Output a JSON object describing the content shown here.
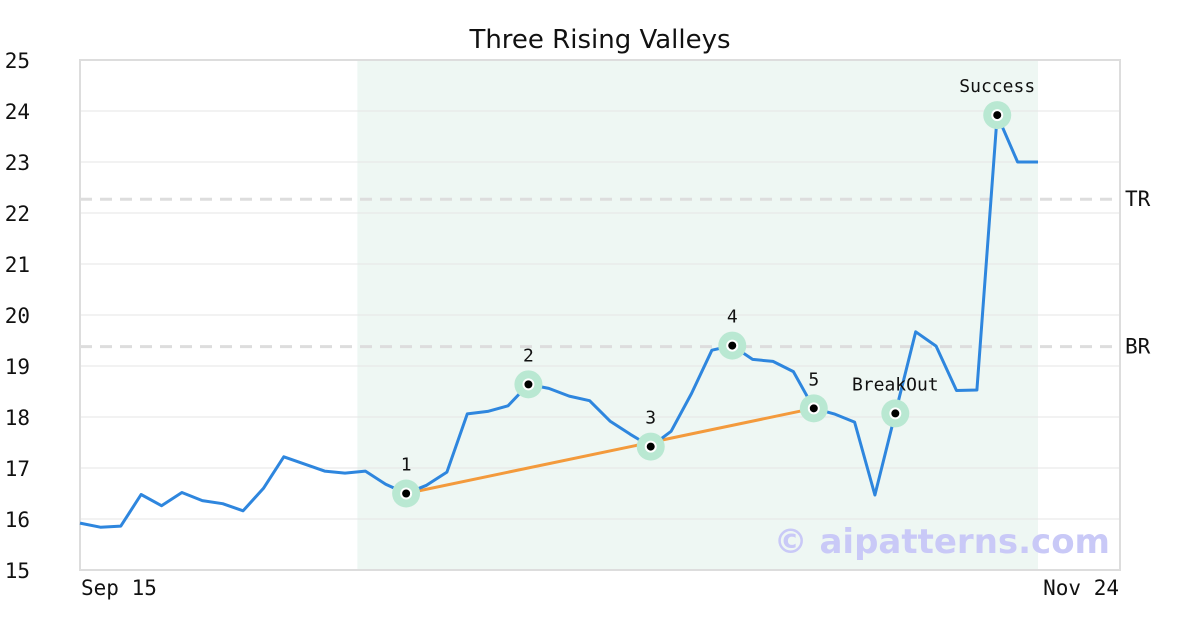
{
  "chart_data": {
    "type": "line",
    "title": "Three Rising Valleys",
    "xlabel": "",
    "ylabel": "",
    "ylim": [
      15,
      25
    ],
    "yticks": [
      15,
      16,
      17,
      18,
      19,
      20,
      21,
      22,
      23,
      24,
      25
    ],
    "x_tick_labels": [
      "Sep 15",
      "Nov 24"
    ],
    "grid": true,
    "series": [
      {
        "color": "#2e86de",
        "values": [
          15.92,
          15.84,
          15.86,
          16.48,
          16.26,
          16.52,
          16.36,
          16.3,
          16.16,
          16.6,
          17.22,
          17.08,
          16.94,
          16.9,
          16.94,
          16.68,
          16.5,
          16.66,
          16.92,
          18.06,
          18.11,
          18.22,
          18.64,
          18.56,
          18.41,
          18.32,
          17.92,
          17.66,
          17.42,
          17.72,
          18.46,
          19.31,
          19.4,
          19.13,
          19.09,
          18.89,
          18.17,
          18.06,
          17.9,
          16.47,
          18.07,
          19.67,
          19.39,
          18.52,
          18.53,
          23.92,
          23.0,
          23.0
        ]
      }
    ],
    "highlight_region": {
      "start_index": 14,
      "end_index": 47,
      "color": "#eef7f3"
    },
    "reference_lines": [
      {
        "label": "TR",
        "value": 22.27
      },
      {
        "label": "BR",
        "value": 19.38
      }
    ],
    "trend_line": {
      "from_index": 16,
      "to_index": 36,
      "color": "#f39a3c"
    },
    "annotations": [
      {
        "label": "1",
        "index": 16,
        "value": 16.5
      },
      {
        "label": "2",
        "index": 22,
        "value": 18.64
      },
      {
        "label": "3",
        "index": 28,
        "value": 17.42
      },
      {
        "label": "4",
        "index": 32,
        "value": 19.4
      },
      {
        "label": "5",
        "index": 36,
        "value": 18.17
      },
      {
        "label": "BreakOut",
        "index": 40,
        "value": 18.07
      },
      {
        "label": "Success",
        "index": 45,
        "value": 23.92
      }
    ],
    "watermark": "© aipatterns.com"
  }
}
